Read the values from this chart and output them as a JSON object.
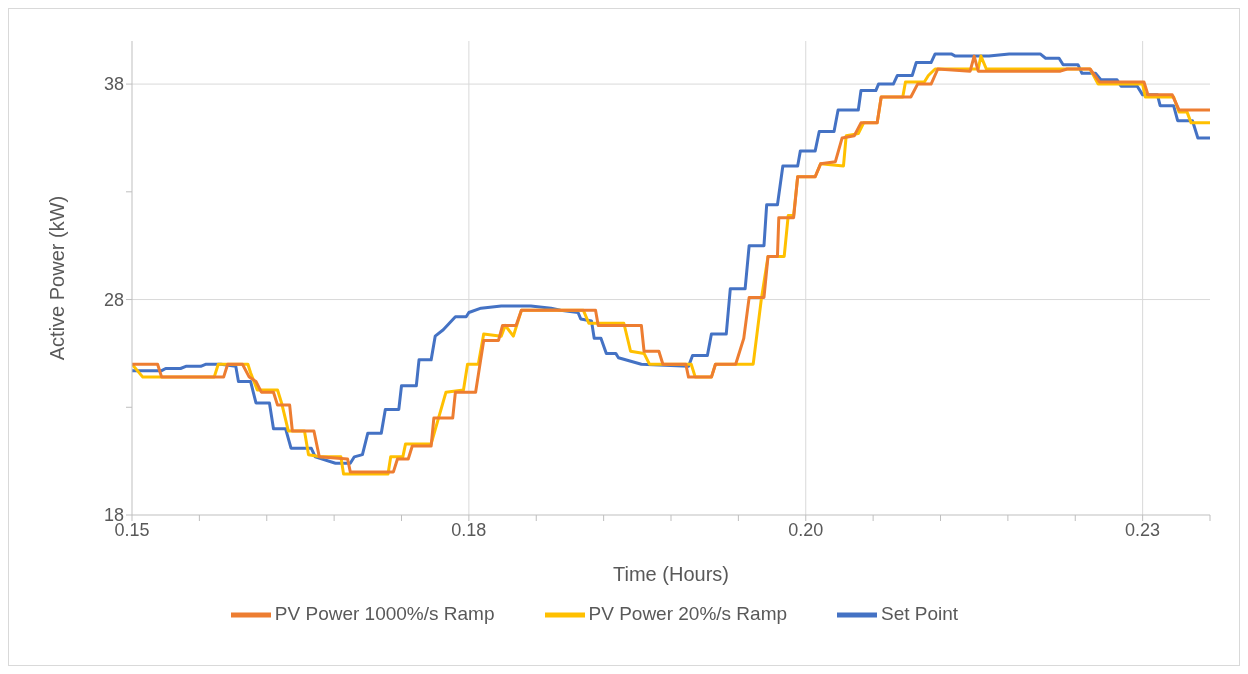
{
  "chart_data": {
    "type": "line",
    "xlabel": "Time (Hours)",
    "ylabel": "Active Power (kW)",
    "xlim": [
      0.15,
      0.23
    ],
    "xticks": [
      0.15,
      {
        "value": 0.155,
        "label": null
      },
      {
        "value": 0.16,
        "label": null
      },
      {
        "value": 0.165,
        "label": null
      },
      {
        "value": 0.17,
        "label": null
      },
      {
        "value": 0.175,
        "label": "0.18"
      },
      {
        "value": 0.18,
        "label": null
      },
      {
        "value": 0.185,
        "label": null
      },
      {
        "value": 0.19,
        "label": null
      },
      {
        "value": 0.195,
        "label": null
      },
      {
        "value": 0.2,
        "label": "0.20"
      },
      {
        "value": 0.205,
        "label": null
      },
      {
        "value": 0.21,
        "label": null
      },
      {
        "value": 0.215,
        "label": null
      },
      {
        "value": 0.22,
        "label": null
      },
      {
        "value": 0.225,
        "label": "0.23"
      },
      {
        "value": 0.23,
        "label": null
      }
    ],
    "ylim": [
      18,
      40
    ],
    "yticks": [
      18,
      {
        "value": 23,
        "label": null
      },
      28,
      {
        "value": 33,
        "label": null
      },
      38
    ],
    "grid": true,
    "legend": "bottom",
    "marker": "none",
    "line_style": "solid",
    "series": [
      {
        "name": "Set Point",
        "color": "#4472c4",
        "x": [
          0.15,
          0.1522,
          0.1525,
          0.1536,
          0.154,
          0.1551,
          0.1555,
          0.1566,
          0.1577,
          0.1579,
          0.1588,
          0.1592,
          0.1602,
          0.1605,
          0.1614,
          0.1618,
          0.1633,
          0.1636,
          0.1651,
          0.1662,
          0.1665,
          0.1671,
          0.1675,
          0.1685,
          0.1688,
          0.1698,
          0.17,
          0.1711,
          0.1713,
          0.1722,
          0.1725,
          0.1731,
          0.174,
          0.1748,
          0.175,
          0.1759,
          0.1774,
          0.1796,
          0.1811,
          0.1818,
          0.1831,
          0.1833,
          0.1841,
          0.1843,
          0.1848,
          0.1852,
          0.1859,
          0.1861,
          0.1878,
          0.1913,
          0.1916,
          0.1927,
          0.193,
          0.1941,
          0.1944,
          0.1955,
          0.1958,
          0.1969,
          0.1971,
          0.1979,
          0.1983,
          0.1994,
          0.1996,
          0.2007,
          0.201,
          0.2021,
          0.2024,
          0.2039,
          0.2041,
          0.2052,
          0.2054,
          0.2065,
          0.2068,
          0.2079,
          0.2082,
          0.2093,
          0.2096,
          0.2108,
          0.2111,
          0.2136,
          0.2151,
          0.2174,
          0.2178,
          0.2188,
          0.2191,
          0.2202,
          0.2205,
          0.2215,
          0.2219,
          0.2231,
          0.2234,
          0.2246,
          0.225,
          0.2261,
          0.2263,
          0.2273,
          0.2276,
          0.2287,
          0.2291,
          0.23
        ],
        "values": [
          24.7,
          24.7,
          24.8,
          24.8,
          24.9,
          24.9,
          25.0,
          25.0,
          24.9,
          24.2,
          24.2,
          23.2,
          23.2,
          22.0,
          22.0,
          21.1,
          21.1,
          20.7,
          20.4,
          20.4,
          20.7,
          20.8,
          21.8,
          21.8,
          22.9,
          22.9,
          24.0,
          24.0,
          25.2,
          25.2,
          26.3,
          26.6,
          27.2,
          27.2,
          27.4,
          27.6,
          27.7,
          27.7,
          27.6,
          27.5,
          27.4,
          27.1,
          27.0,
          26.2,
          26.2,
          25.5,
          25.5,
          25.3,
          25.0,
          24.9,
          25.4,
          25.4,
          26.4,
          26.4,
          28.5,
          28.5,
          30.5,
          30.5,
          32.4,
          32.4,
          34.2,
          34.2,
          34.9,
          34.9,
          35.8,
          35.8,
          36.8,
          36.8,
          37.7,
          37.7,
          38.0,
          38.0,
          38.4,
          38.4,
          39.0,
          39.0,
          39.4,
          39.4,
          39.3,
          39.3,
          39.4,
          39.4,
          39.2,
          39.2,
          38.9,
          38.9,
          38.5,
          38.5,
          38.2,
          38.2,
          37.9,
          37.9,
          37.5,
          37.5,
          37.0,
          37.0,
          36.3,
          36.3,
          35.5,
          35.5
        ]
      },
      {
        "name": "PV Power 20%/s Ramp",
        "color": "#ffc000",
        "x": [
          0.15,
          0.1508,
          0.1561,
          0.1564,
          0.1586,
          0.1588,
          0.1593,
          0.1608,
          0.1611,
          0.1616,
          0.1628,
          0.1631,
          0.164,
          0.1655,
          0.1657,
          0.169,
          0.1692,
          0.1701,
          0.1703,
          0.1722,
          0.1733,
          0.1746,
          0.1749,
          0.1757,
          0.1761,
          0.1774,
          0.1777,
          0.1783,
          0.1789,
          0.1835,
          0.1839,
          0.1865,
          0.187,
          0.188,
          0.1884,
          0.1915,
          0.1918,
          0.193,
          0.1933,
          0.1961,
          0.1967,
          0.1972,
          0.1984,
          0.1987,
          0.1991,
          0.1994,
          0.2007,
          0.2011,
          0.2028,
          0.203,
          0.2039,
          0.2043,
          0.2053,
          0.2056,
          0.2072,
          0.2074,
          0.2088,
          0.2091,
          0.2096,
          0.2128,
          0.213,
          0.2134,
          0.2211,
          0.2217,
          0.225,
          0.2252,
          0.2273,
          0.2277,
          0.2283,
          0.2286,
          0.23
        ],
        "values": [
          25.0,
          24.4,
          24.4,
          25.0,
          25.0,
          24.6,
          23.8,
          23.8,
          23.2,
          21.9,
          21.9,
          20.8,
          20.7,
          20.7,
          19.9,
          19.9,
          20.7,
          20.7,
          21.3,
          21.3,
          23.7,
          23.8,
          25.0,
          25.0,
          26.4,
          26.3,
          26.8,
          26.3,
          27.5,
          27.5,
          26.9,
          26.9,
          25.6,
          25.5,
          25.0,
          25.0,
          24.4,
          24.4,
          25.0,
          25.0,
          28.0,
          30.0,
          30.0,
          31.9,
          31.9,
          33.7,
          33.7,
          34.3,
          34.2,
          35.6,
          35.7,
          36.2,
          36.2,
          37.4,
          37.4,
          38.1,
          38.1,
          38.4,
          38.7,
          38.7,
          39.3,
          38.7,
          38.7,
          38.0,
          38.0,
          37.4,
          37.4,
          36.7,
          36.7,
          36.2,
          36.2
        ]
      },
      {
        "name": "PV Power 1000%/s Ramp",
        "color": "#ed7d31",
        "x": [
          0.15,
          0.1519,
          0.1522,
          0.1568,
          0.1571,
          0.1582,
          0.1587,
          0.1592,
          0.1596,
          0.1605,
          0.1608,
          0.1617,
          0.1619,
          0.1635,
          0.1639,
          0.166,
          0.1662,
          0.1694,
          0.1697,
          0.1705,
          0.1708,
          0.1722,
          0.1724,
          0.1738,
          0.174,
          0.1755,
          0.1758,
          0.1761,
          0.1772,
          0.1775,
          0.1785,
          0.1789,
          0.1844,
          0.1846,
          0.1878,
          0.188,
          0.1891,
          0.1894,
          0.1911,
          0.1913,
          0.193,
          0.1933,
          0.1948,
          0.1954,
          0.1958,
          0.1969,
          0.1972,
          0.1979,
          0.198,
          0.1991,
          0.1994,
          0.2007,
          0.2011,
          0.2022,
          0.2027,
          0.2036,
          0.2041,
          0.2053,
          0.2056,
          0.2078,
          0.2083,
          0.2093,
          0.2098,
          0.2122,
          0.2125,
          0.2128,
          0.2189,
          0.2194,
          0.2211,
          0.2218,
          0.2251,
          0.2254,
          0.2272,
          0.2277,
          0.23
        ],
        "values": [
          25.0,
          25.0,
          24.4,
          24.4,
          25.0,
          25.0,
          24.4,
          24.2,
          23.7,
          23.7,
          23.1,
          23.1,
          21.9,
          21.9,
          20.7,
          20.6,
          20.0,
          20.0,
          20.6,
          20.6,
          21.2,
          21.2,
          22.5,
          22.5,
          23.7,
          23.7,
          24.9,
          26.1,
          26.1,
          26.8,
          26.8,
          27.5,
          27.5,
          26.8,
          26.8,
          25.6,
          25.6,
          25.0,
          25.0,
          24.4,
          24.4,
          25.0,
          25.0,
          26.2,
          28.1,
          28.1,
          30.0,
          30.0,
          31.8,
          31.8,
          33.7,
          33.7,
          34.3,
          34.4,
          35.5,
          35.6,
          36.2,
          36.2,
          37.4,
          37.4,
          38.0,
          38.0,
          38.7,
          38.6,
          39.3,
          38.6,
          38.6,
          38.7,
          38.7,
          38.1,
          38.1,
          37.5,
          37.5,
          36.8,
          36.8
        ]
      }
    ]
  }
}
